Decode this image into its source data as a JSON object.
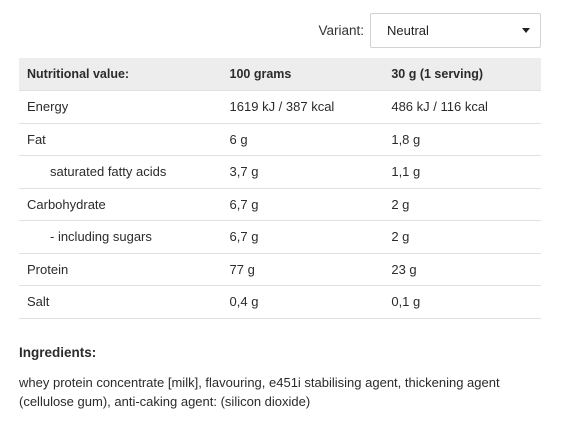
{
  "variant": {
    "label": "Variant:",
    "selected": "Neutral",
    "caret_icon": "chevron-down-icon"
  },
  "table": {
    "headers": [
      "Nutritional value:",
      "100 grams",
      "30 g (1 serving)"
    ],
    "rows": [
      {
        "name": "Energy",
        "per100": "1619 kJ / 387 kcal",
        "serving": "486 kJ / 116 kcal",
        "indent": false
      },
      {
        "name": "Fat",
        "per100": "6 g",
        "serving": "1,8 g",
        "indent": false
      },
      {
        "name": "saturated fatty acids",
        "per100": "3,7 g",
        "serving": "1,1 g",
        "indent": true
      },
      {
        "name": "Carbohydrate",
        "per100": "6,7 g",
        "serving": "2 g",
        "indent": false
      },
      {
        "name": "- including sugars",
        "per100": "6,7 g",
        "serving": "2 g",
        "indent": true
      },
      {
        "name": "Protein",
        "per100": "77 g",
        "serving": "23 g",
        "indent": false
      },
      {
        "name": "Salt",
        "per100": "0,4 g",
        "serving": "0,1 g",
        "indent": false
      }
    ]
  },
  "ingredients": {
    "title": "Ingredients:",
    "text": "whey protein concentrate [milk], flavouring, e451i stabilising agent, thickening agent (cellulose gum), anti-caking agent: (silicon dioxide)"
  }
}
